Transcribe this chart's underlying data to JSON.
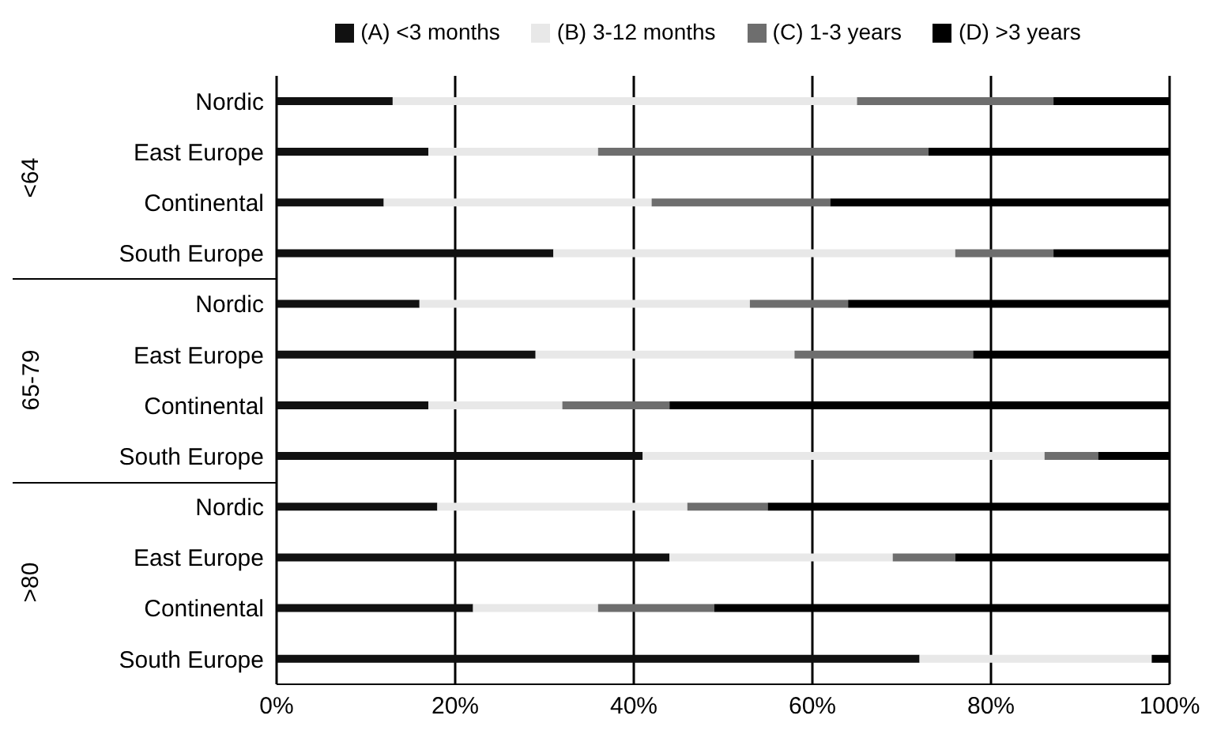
{
  "chart_data": {
    "type": "bar",
    "orientation": "horizontal",
    "stacked": true,
    "categories": [
      "Nordic",
      "East Europe",
      "Continental",
      "South Europe",
      "Nordic",
      "East Europe",
      "Continental",
      "South Europe",
      "Nordic",
      "East Europe",
      "Continental",
      "South Europe"
    ],
    "series": [
      {
        "name": "(A) <3 months",
        "color": "#111111",
        "values": [
          13,
          17,
          12,
          31,
          16,
          29,
          17,
          41,
          18,
          44,
          22,
          72
        ]
      },
      {
        "name": "(B) 3-12 months",
        "color": "#e8e8e8",
        "values": [
          52,
          19,
          30,
          45,
          37,
          29,
          15,
          45,
          28,
          25,
          14,
          26
        ]
      },
      {
        "name": "(C) 1-3 years",
        "color": "#6e6e6e",
        "values": [
          22,
          37,
          20,
          11,
          11,
          20,
          12,
          6,
          9,
          7,
          13,
          0
        ]
      },
      {
        "name": "(D) >3 years",
        "color": "#000000",
        "values": [
          13,
          27,
          38,
          13,
          36,
          22,
          56,
          8,
          45,
          24,
          51,
          2
        ]
      }
    ],
    "xlim": [
      0,
      100
    ],
    "xticks": [
      {
        "value": 0,
        "label": "0%"
      },
      {
        "value": 20,
        "label": "20%"
      },
      {
        "value": 40,
        "label": "40%"
      },
      {
        "value": 60,
        "label": "60%"
      },
      {
        "value": 80,
        "label": "80%"
      },
      {
        "value": 100,
        "label": "100%"
      }
    ],
    "annotations": [
      "<64",
      "65-79",
      ">80"
    ],
    "grid": "x",
    "legend": "top"
  }
}
